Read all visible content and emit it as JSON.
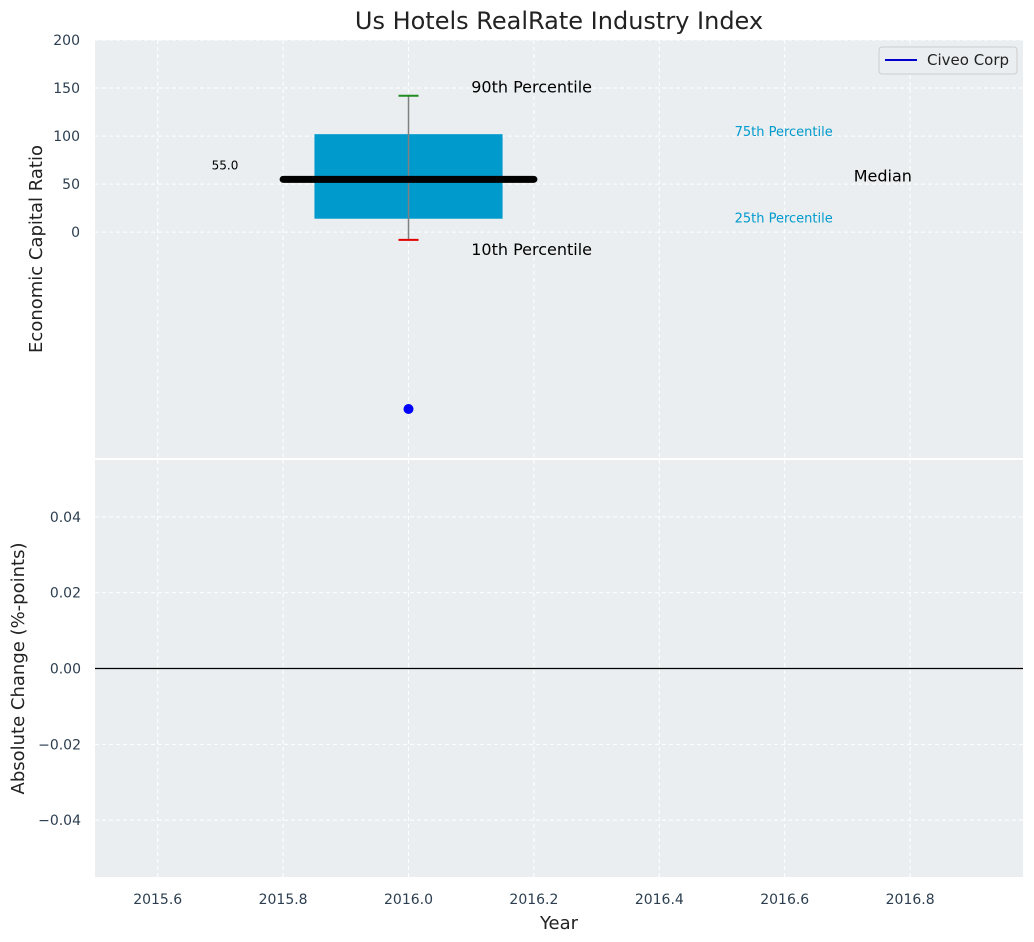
{
  "chart_data": [
    {
      "type": "box",
      "title": "Us Hotels RealRate Industry Index",
      "ylabel": "Economic Capital Ratio",
      "xlim": [
        2015.5,
        2016.98
      ],
      "ylim": [
        -235,
        200
      ],
      "yticks": [
        0,
        50,
        100,
        150,
        200
      ],
      "grid": true,
      "legend": {
        "position": "top-right",
        "entries": [
          {
            "label": "Civeo Corp",
            "color": "#0000cc"
          }
        ]
      },
      "box": {
        "x": 2016.0,
        "x_start": 2015.85,
        "x_end": 2016.15,
        "p10": -8,
        "p25": 14,
        "median": 55,
        "p75": 102,
        "p90": 142,
        "median_x_range": [
          2015.8,
          2016.2
        ]
      },
      "company_point": {
        "name": "Civeo Corp",
        "x": 2016.0,
        "y": -184
      },
      "annotations": {
        "median_value": "55.0",
        "p90": "90th Percentile",
        "p10": "10th Percentile",
        "p75": "75th Percentile",
        "p25": "25th Percentile",
        "median": "Median"
      },
      "colors": {
        "box": "#009acd",
        "median": "#000000",
        "p90_cap": "#228b22",
        "p10_cap": "#e00000",
        "whisker": "#808080",
        "point": "#0000ff",
        "pct_label": "#009acd"
      }
    },
    {
      "type": "line",
      "ylabel": "Absolute Change (%-points)",
      "xlabel": "Year",
      "xlim": [
        2015.5,
        2016.98
      ],
      "ylim": [
        -0.055,
        0.055
      ],
      "yticks": [
        0.04,
        0.02,
        0.0,
        -0.02,
        -0.04
      ],
      "ytick_labels": [
        "0.04",
        "0.02",
        "0.00",
        "−0.02",
        "−0.04"
      ],
      "xticks": [
        2015.6,
        2015.8,
        2016.0,
        2016.2,
        2016.4,
        2016.6,
        2016.8
      ],
      "xtick_labels": [
        "2015.6",
        "2015.8",
        "2016.0",
        "2016.2",
        "2016.4",
        "2016.6",
        "2016.8"
      ],
      "reference_line": 0,
      "grid": true
    }
  ]
}
